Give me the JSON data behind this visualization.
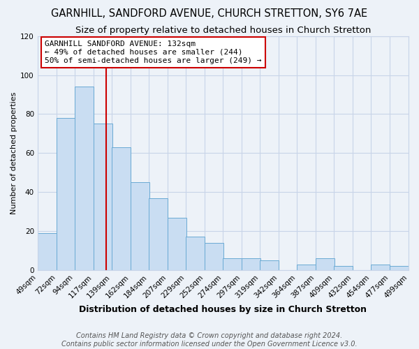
{
  "title": "GARNHILL, SANDFORD AVENUE, CHURCH STRETTON, SY6 7AE",
  "subtitle": "Size of property relative to detached houses in Church Stretton",
  "xlabel": "Distribution of detached houses by size in Church Stretton",
  "ylabel": "Number of detached properties",
  "footer_line1": "Contains HM Land Registry data © Crown copyright and database right 2024.",
  "footer_line2": "Contains public sector information licensed under the Open Government Licence v3.0.",
  "bar_left_edges": [
    49,
    72,
    94,
    117,
    139,
    162,
    184,
    207,
    229,
    252,
    274,
    297,
    319,
    342,
    364,
    387,
    409,
    432,
    454,
    477
  ],
  "bar_heights": [
    19,
    78,
    94,
    75,
    63,
    45,
    37,
    27,
    17,
    14,
    6,
    6,
    5,
    0,
    3,
    6,
    2,
    0,
    3,
    2
  ],
  "bin_width": 23,
  "bar_color": "#c9ddf2",
  "bar_edge_color": "#6aaad4",
  "tick_labels": [
    "49sqm",
    "72sqm",
    "94sqm",
    "117sqm",
    "139sqm",
    "162sqm",
    "184sqm",
    "207sqm",
    "229sqm",
    "252sqm",
    "274sqm",
    "297sqm",
    "319sqm",
    "342sqm",
    "364sqm",
    "387sqm",
    "409sqm",
    "432sqm",
    "454sqm",
    "477sqm",
    "499sqm"
  ],
  "vline_x": 132,
  "vline_color": "#cc0000",
  "annotation_text_line1": "GARNHILL SANDFORD AVENUE: 132sqm",
  "annotation_text_line2": "← 49% of detached houses are smaller (244)",
  "annotation_text_line3": "50% of semi-detached houses are larger (249) →",
  "annotation_box_color": "#cc0000",
  "ylim": [
    0,
    120
  ],
  "yticks": [
    0,
    20,
    40,
    60,
    80,
    100,
    120
  ],
  "grid_color": "#c8d4e8",
  "bg_color": "#edf2f8",
  "title_fontsize": 10.5,
  "subtitle_fontsize": 9.5,
  "xlabel_fontsize": 9,
  "ylabel_fontsize": 8,
  "tick_fontsize": 7.5,
  "ann_fontsize": 8,
  "footer_fontsize": 7
}
